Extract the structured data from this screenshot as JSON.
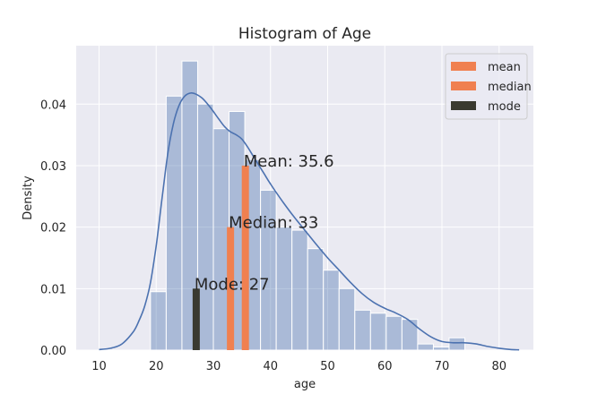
{
  "chart_data": {
    "type": "bar",
    "title": "Histogram of Age",
    "xlabel": "age",
    "ylabel": "Density",
    "xlim": [
      6,
      86
    ],
    "ylim": [
      0,
      0.0495
    ],
    "xticks": [
      10,
      20,
      30,
      40,
      50,
      60,
      70,
      80
    ],
    "yticks": [
      0.0,
      0.01,
      0.02,
      0.03,
      0.04
    ],
    "ytick_labels": [
      "0.00",
      "0.01",
      "0.02",
      "0.03",
      "0.04"
    ],
    "grid": true,
    "histogram": {
      "bin_edges": [
        19,
        21.75,
        24.5,
        27.25,
        30,
        32.75,
        35.5,
        38.25,
        41,
        43.75,
        46.5,
        49.25,
        52,
        54.75,
        57.5,
        60.25,
        63,
        65.75,
        68.5,
        71.25,
        74
      ],
      "density": [
        0.0095,
        0.0413,
        0.047,
        0.04,
        0.036,
        0.0388,
        0.031,
        0.026,
        0.02,
        0.0195,
        0.0165,
        0.013,
        0.01,
        0.0065,
        0.006,
        0.0055,
        0.005,
        0.001,
        0.0005,
        0.002
      ],
      "color": "#4c72b0"
    },
    "kde": {
      "x": [
        10,
        12,
        14,
        16,
        17,
        18,
        19,
        20,
        21,
        22,
        23,
        24,
        25,
        26,
        27,
        28,
        29,
        30,
        31,
        32,
        33,
        34,
        35,
        36,
        37,
        38,
        39,
        40,
        42,
        44,
        46,
        48,
        50,
        52,
        54,
        56,
        58,
        60,
        62,
        64,
        66,
        68,
        70,
        72,
        74,
        76,
        78,
        80,
        82,
        83.5
      ],
      "y": [
        0.0001,
        0.0003,
        0.001,
        0.003,
        0.0048,
        0.0072,
        0.011,
        0.017,
        0.0245,
        0.0318,
        0.0368,
        0.0398,
        0.0413,
        0.0418,
        0.0416,
        0.041,
        0.04,
        0.0388,
        0.0375,
        0.0363,
        0.0355,
        0.035,
        0.0343,
        0.033,
        0.0315,
        0.03,
        0.0285,
        0.027,
        0.0243,
        0.0218,
        0.0195,
        0.0172,
        0.015,
        0.013,
        0.011,
        0.0092,
        0.0078,
        0.0068,
        0.006,
        0.005,
        0.0035,
        0.0022,
        0.0014,
        0.0012,
        0.0012,
        0.001,
        0.0006,
        0.0003,
        0.0001,
        5e-05
      ],
      "color": "#4c72b0"
    },
    "reference_bars": [
      {
        "key": "mean",
        "x": 35.6,
        "height": 0.03,
        "color": "#f08050",
        "label": "Mean: 35.6"
      },
      {
        "key": "median",
        "x": 33,
        "height": 0.02,
        "color": "#f08050",
        "label": "Median: 33"
      },
      {
        "key": "mode",
        "x": 27,
        "height": 0.01,
        "color": "#3a3a30",
        "label": "Mode: 27"
      }
    ],
    "legend": {
      "position": "top-right",
      "entries": [
        {
          "name": "mean",
          "color": "#f08050"
        },
        {
          "name": "median",
          "color": "#f08050"
        },
        {
          "name": "mode",
          "color": "#3a3a30"
        }
      ]
    }
  }
}
